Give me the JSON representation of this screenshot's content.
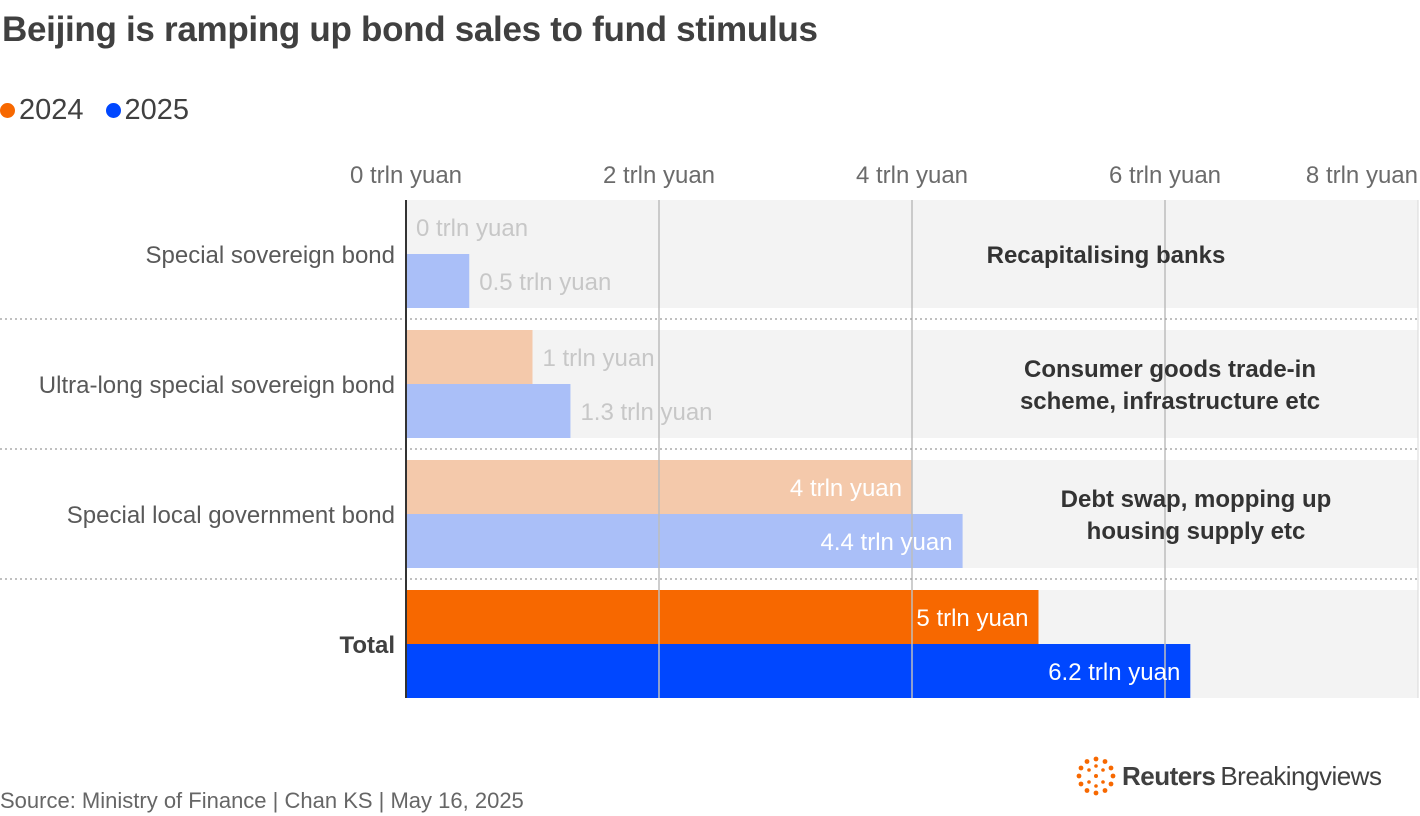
{
  "title": "Beijing is ramping up bond sales to fund stimulus",
  "legend": [
    {
      "label": "2024",
      "color": "#f76800"
    },
    {
      "label": "2025",
      "color": "#0047ff"
    }
  ],
  "colors": {
    "2024": "#f76800",
    "2025": "#0047ff",
    "2024_light": "#f4c9ab",
    "2025_light": "#aabff8",
    "band": "#f3f3f3",
    "gridline": "#bdbdbd",
    "axis": "#333333"
  },
  "chart_data": {
    "type": "bar",
    "orientation": "horizontal",
    "title": "Beijing is ramping up bond sales to fund stimulus",
    "xlabel": "",
    "ylabel": "",
    "xlim": [
      0,
      8
    ],
    "x_ticks": [
      0,
      2,
      4,
      6,
      8
    ],
    "x_tick_labels": [
      "0 trln yuan",
      "2 trln yuan",
      "4 trln yuan",
      "6 trln yuan",
      "8 trln yuan"
    ],
    "grid": true,
    "legend_position": "top-left",
    "categories": [
      "Special sovereign bond",
      "Ultra-long special sovereign bond",
      "Special local government bond",
      "Total"
    ],
    "series": [
      {
        "name": "2024",
        "values": [
          0,
          1,
          4,
          5
        ],
        "labels": [
          "0 trln yuan",
          "1 trln yuan",
          "4 trln yuan",
          "5 trln yuan"
        ]
      },
      {
        "name": "2025",
        "values": [
          0.5,
          1.3,
          4.4,
          6.2
        ],
        "labels": [
          "0.5 trln yuan",
          "1.3 trln yuan",
          "4.4 trln yuan",
          "6.2 trln yuan"
        ]
      }
    ],
    "annotations": [
      {
        "category": "Special sovereign bond",
        "lines": [
          "Recapitalising banks"
        ]
      },
      {
        "category": "Ultra-long special sovereign bond",
        "lines": [
          "Consumer goods trade-in",
          "scheme, infrastructure etc"
        ]
      },
      {
        "category": "Special local government bond",
        "lines": [
          "Debt swap, mopping up",
          "housing supply etc"
        ]
      }
    ],
    "bold_categories": [
      "Total"
    ]
  },
  "footer": {
    "source": "Source: Ministry of Finance | Chan KS | May 16, 2025",
    "brand_name": "Reuters",
    "brand_sub": "Breakingviews"
  }
}
